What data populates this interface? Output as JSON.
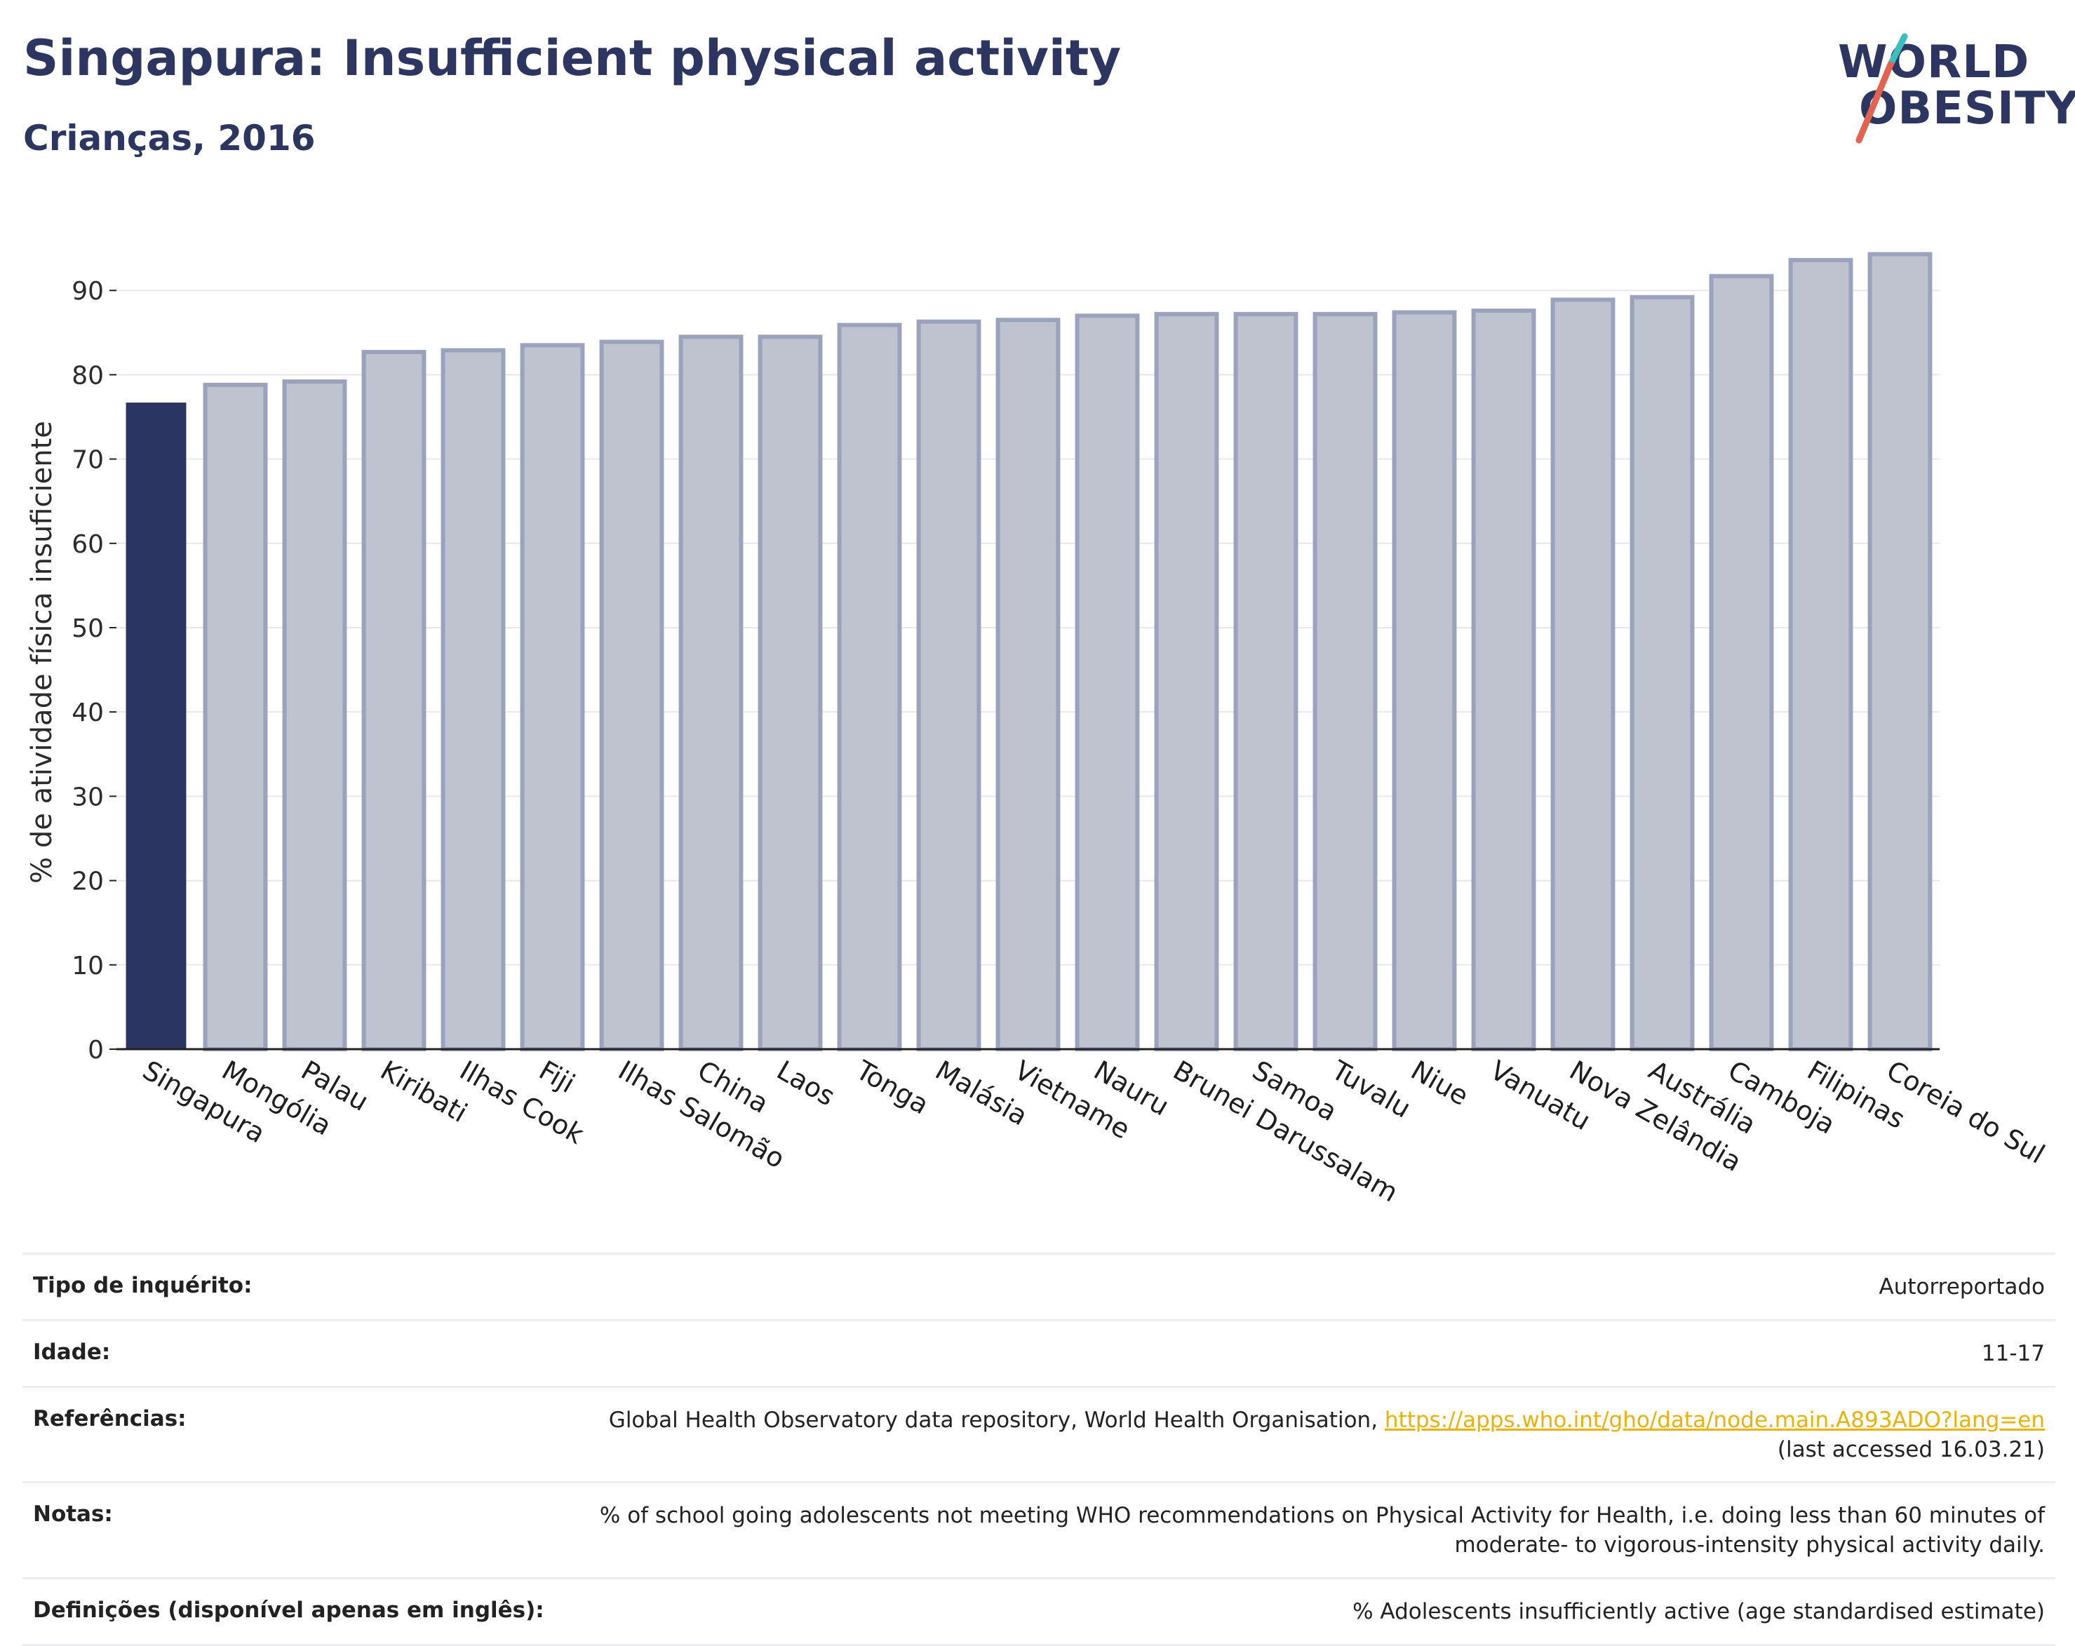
{
  "header": {
    "title": "Singapura: Insufficient physical activity",
    "subtitle": "Crianças, 2016"
  },
  "logo": {
    "line1": "WORLD",
    "line2": "OBESITY",
    "accent_teal": "#3bbfbf",
    "accent_red": "#e2634f"
  },
  "colors": {
    "highlight": "#2b3561",
    "bar_fill": "#bfc2cf",
    "bar_stroke": "#9ba2bb",
    "grid": "#e6e8ee",
    "axis": "#222222"
  },
  "chart_data": {
    "type": "bar",
    "title": "Singapura: Insufficient physical activity",
    "subtitle": "Crianças, 2016",
    "xlabel": "",
    "ylabel": "% de atividade física insuficiente",
    "ylim": [
      0,
      97
    ],
    "yticks": [
      0,
      10,
      20,
      30,
      40,
      50,
      60,
      70,
      80,
      90
    ],
    "grid": true,
    "highlight": "Singapura",
    "categories": [
      "Singapura",
      "Mongólia",
      "Palau",
      "Kiribati",
      "Ilhas Cook",
      "Fiji",
      "Ilhas Salomão",
      "China",
      "Laos",
      "Tonga",
      "Malásia",
      "Vietname",
      "Nauru",
      "Brunei Darussalam",
      "Samoa",
      "Tuvalu",
      "Niue",
      "Vanuatu",
      "Nova Zelândia",
      "Austrália",
      "Camboja",
      "Filipinas",
      "Coreia do Sul"
    ],
    "values": [
      76.7,
      78.8,
      79.2,
      82.7,
      82.9,
      83.5,
      83.9,
      84.5,
      84.5,
      85.9,
      86.3,
      86.5,
      87.0,
      87.2,
      87.2,
      87.2,
      87.4,
      87.6,
      88.9,
      89.2,
      91.7,
      93.6,
      94.3
    ]
  },
  "info": {
    "rows": [
      {
        "label": "Tipo de inquérito:",
        "value": "Autorreportado"
      },
      {
        "label": "Idade:",
        "value": "11-17"
      },
      {
        "label": "Referências:",
        "value": "Global Health Observatory data repository, World Health Organisation,",
        "link": "https://apps.who.int/gho/data/node.main.A893ADO?lang=en",
        "value2": "(last accessed 16.03.21)"
      },
      {
        "label": "Notas:",
        "value": "% of school going adolescents not meeting WHO recommendations on Physical Activity for Health, i.e. doing less than 60 minutes of",
        "value2": "moderate- to vigorous-intensity physical activity daily."
      },
      {
        "label": "Definições (disponível apenas em inglês):",
        "value": "% Adolescents insufficiently active (age standardised estimate)"
      }
    ]
  }
}
